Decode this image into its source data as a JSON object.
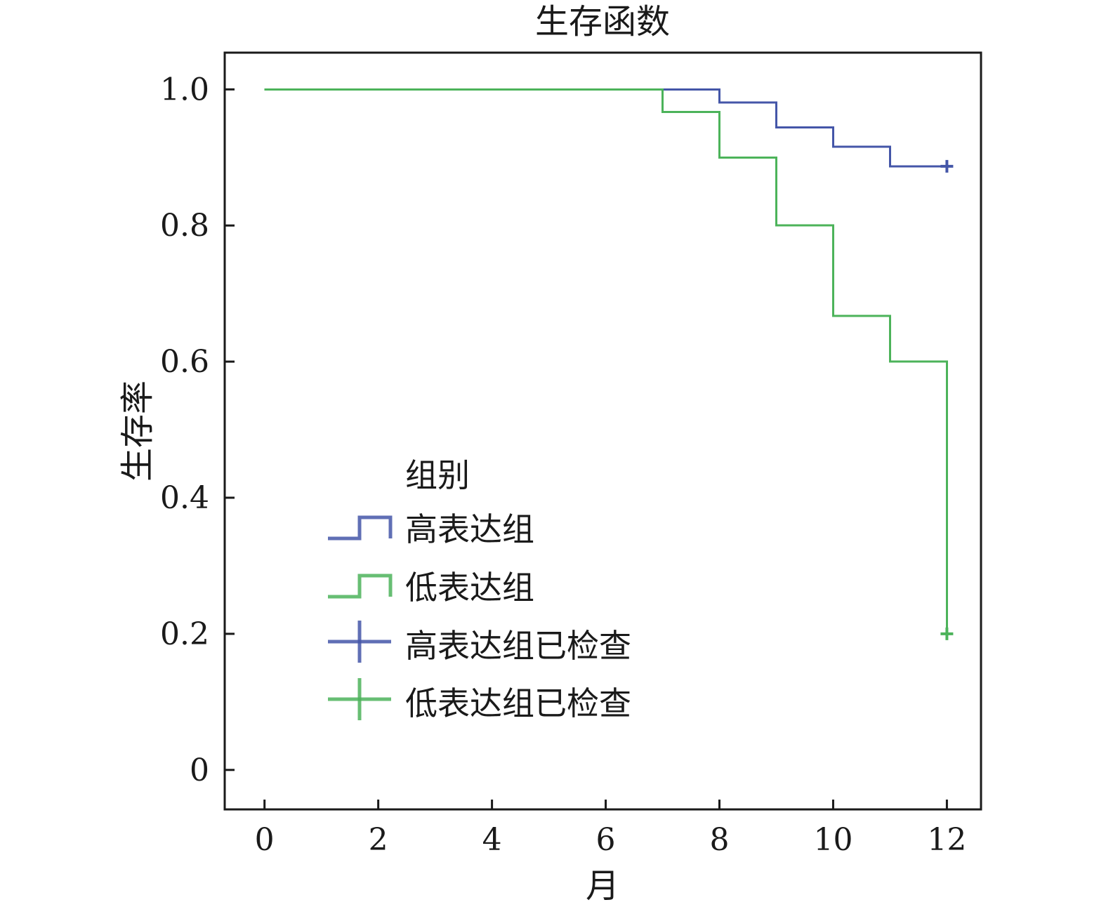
{
  "chart_data": {
    "type": "line",
    "subtype": "kaplan-meier-step",
    "title": "生存函数",
    "xlabel": "月",
    "ylabel": "生存率",
    "xlim": [
      -0.7,
      12.6
    ],
    "ylim": [
      -0.058,
      1.054
    ],
    "x_ticks": [
      0,
      2,
      4,
      6,
      8,
      10,
      12
    ],
    "x_tick_labels": [
      "0",
      "2",
      "4",
      "6",
      "8",
      "10",
      "12"
    ],
    "y_ticks": [
      0,
      0.2,
      0.4,
      0.6,
      0.8,
      1.0
    ],
    "y_tick_labels": [
      "0",
      "0.2",
      "0.4",
      "0.6",
      "0.8",
      "1.0"
    ],
    "grid": false,
    "legend": {
      "title": "组别",
      "placement": "lower-left",
      "entries": [
        {
          "label": "高表达组",
          "kind": "step",
          "color": "#4456a8"
        },
        {
          "label": "低表达组",
          "kind": "step",
          "color": "#4cb35a"
        },
        {
          "label": "高表达组已检查",
          "kind": "censor",
          "color": "#4456a8"
        },
        {
          "label": "低表达组已检查",
          "kind": "censor",
          "color": "#4cb35a"
        }
      ]
    },
    "series": [
      {
        "name": "高表达组",
        "color": "#4456a8",
        "x": [
          0,
          8,
          9,
          10,
          11,
          12
        ],
        "y": [
          1.0,
          0.981,
          0.944,
          0.916,
          0.887,
          0.887
        ],
        "censored": [
          {
            "x": 12,
            "y": 0.887
          }
        ]
      },
      {
        "name": "低表达组",
        "color": "#4cb35a",
        "x": [
          0,
          7,
          8,
          9,
          10,
          11,
          12
        ],
        "y": [
          1.0,
          0.967,
          0.9,
          0.8,
          0.667,
          0.6,
          0.2
        ],
        "censored": [
          {
            "x": 12,
            "y": 0.2
          }
        ]
      }
    ]
  }
}
